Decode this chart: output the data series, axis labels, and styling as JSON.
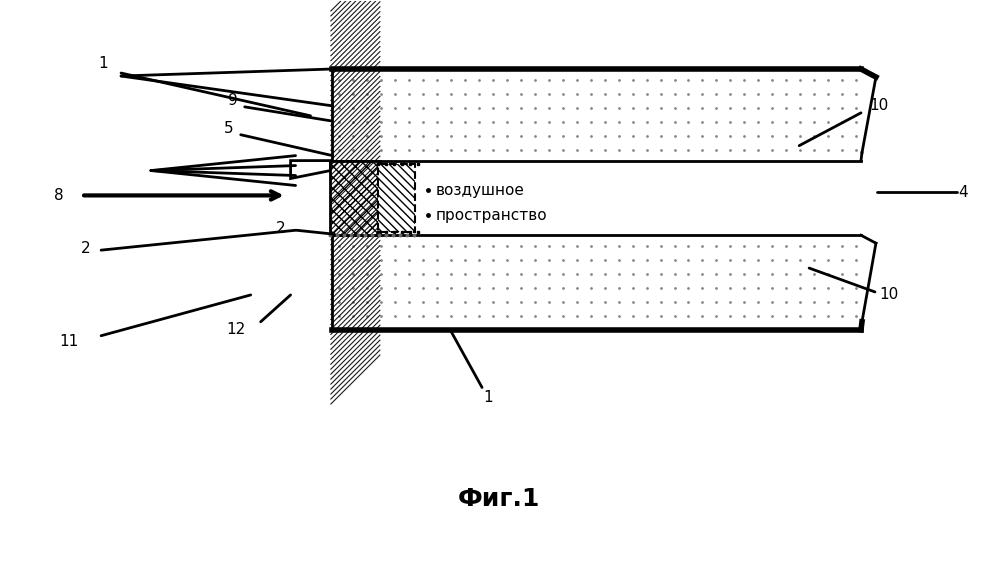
{
  "title": "Фиг.1",
  "bg_color": "#ffffff",
  "black": "#000000",
  "air_line1": "воздушное",
  "air_line2": "пространство"
}
